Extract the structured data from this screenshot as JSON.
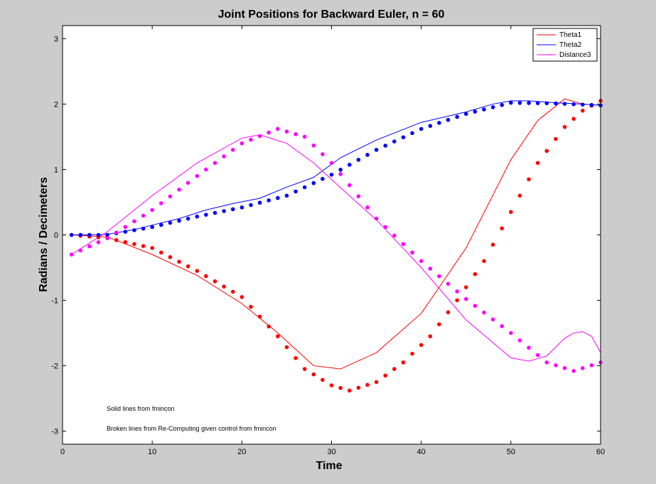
{
  "chart_data": {
    "type": "line",
    "title": "Joint Positions for Backward Euler, n = 60",
    "xlabel": "Time",
    "ylabel": "Radians / Decimeters",
    "xlim": [
      0,
      60
    ],
    "ylim": [
      -3.2,
      3.2
    ],
    "xticks": [
      0,
      10,
      20,
      30,
      40,
      50,
      60
    ],
    "yticks": [
      -3,
      -2,
      -1,
      0,
      1,
      2,
      3
    ],
    "grid": false,
    "legend": {
      "placement": "top-right",
      "entries": [
        "Theta1",
        "Theta2",
        "Distance3"
      ]
    },
    "annotations": [
      "Solid lines from fmincon",
      "Broken lines from Re-Computing given control from fmincon"
    ],
    "series": [
      {
        "name": "Theta1",
        "style": "solid",
        "color": "#ff0000",
        "x": [
          1,
          5,
          10,
          15,
          20,
          24,
          28,
          31,
          35,
          40,
          45,
          50,
          53,
          56,
          58,
          60
        ],
        "y": [
          0,
          -0.03,
          -0.3,
          -0.62,
          -1.05,
          -1.5,
          -2.0,
          -2.05,
          -1.8,
          -1.2,
          -0.2,
          1.15,
          1.75,
          2.08,
          2.0,
          1.98
        ]
      },
      {
        "name": "Theta2",
        "style": "solid",
        "color": "#0000ff",
        "x": [
          1,
          3,
          5,
          8,
          10,
          13,
          16,
          19,
          22,
          25,
          28,
          31,
          35,
          40,
          45,
          48,
          50,
          52,
          55,
          58,
          60
        ],
        "y": [
          0,
          0,
          0.01,
          0.08,
          0.15,
          0.25,
          0.38,
          0.48,
          0.56,
          0.73,
          0.88,
          1.18,
          1.45,
          1.72,
          1.88,
          2.0,
          2.05,
          2.05,
          2.02,
          2.0,
          1.98
        ]
      },
      {
        "name": "Distance3",
        "style": "solid",
        "color": "#ff00ff",
        "x": [
          1,
          5,
          10,
          15,
          20,
          22,
          25,
          28,
          31,
          35,
          40,
          45,
          50,
          52,
          54,
          56,
          57,
          58,
          59,
          60
        ],
        "y": [
          -0.3,
          0.05,
          0.6,
          1.1,
          1.48,
          1.53,
          1.4,
          1.1,
          0.72,
          0.23,
          -0.5,
          -1.3,
          -1.88,
          -1.93,
          -1.85,
          -1.58,
          -1.5,
          -1.48,
          -1.55,
          -1.8
        ]
      },
      {
        "name": "Theta1",
        "style": "dotted",
        "color": "#ff0000",
        "x": [
          1,
          5,
          10,
          15,
          20,
          24,
          27,
          30,
          32,
          35,
          38,
          41,
          44,
          47,
          50,
          53,
          56,
          58,
          60
        ],
        "y": [
          0,
          -0.05,
          -0.2,
          -0.55,
          -0.95,
          -1.55,
          -2.05,
          -2.3,
          -2.38,
          -2.25,
          -1.95,
          -1.55,
          -1.0,
          -0.4,
          0.35,
          1.1,
          1.65,
          1.9,
          2.05
        ]
      },
      {
        "name": "Theta2",
        "style": "dotted",
        "color": "#0000ff",
        "x": [
          1,
          5,
          10,
          15,
          20,
          25,
          30,
          35,
          40,
          45,
          50,
          55,
          60
        ],
        "y": [
          0,
          0,
          0.12,
          0.28,
          0.42,
          0.6,
          0.92,
          1.3,
          1.62,
          1.85,
          2.02,
          2.01,
          1.98
        ]
      },
      {
        "name": "Distance3",
        "style": "dotted",
        "color": "#ff00ff",
        "x": [
          1,
          5,
          10,
          15,
          20,
          24,
          27,
          30,
          35,
          40,
          45,
          50,
          54,
          57,
          60
        ],
        "y": [
          -0.3,
          -0.05,
          0.38,
          0.9,
          1.4,
          1.62,
          1.5,
          1.1,
          0.25,
          -0.4,
          -0.98,
          -1.5,
          -1.95,
          -2.08,
          -1.95
        ]
      }
    ]
  }
}
